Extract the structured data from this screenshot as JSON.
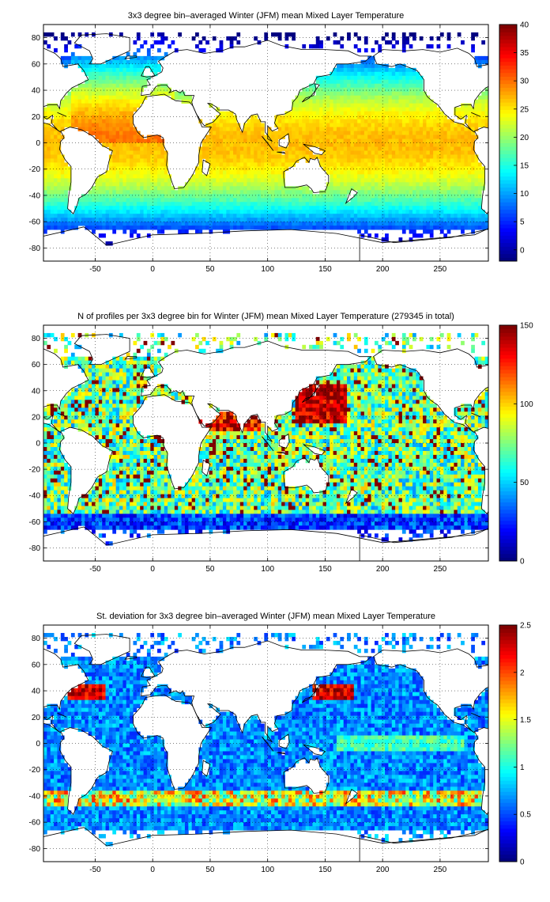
{
  "panels": [
    {
      "id": "temperature",
      "title": "3x3 degree bin–averaged Winter (JFM) mean Mixed Layer Temperature",
      "x_ticks": [
        "-50",
        "0",
        "50",
        "100",
        "150",
        "200",
        "250"
      ],
      "y_ticks": [
        "80",
        "60",
        "40",
        "20",
        "0",
        "-20",
        "-40",
        "-60",
        "-80"
      ],
      "colorbar_ticks": [
        "40",
        "35",
        "30",
        "25",
        "20",
        "15",
        "10",
        "5",
        "0"
      ],
      "colorbar_range": [
        -2,
        40
      ],
      "field": "temperature"
    },
    {
      "id": "profile-count",
      "title": "N of profiles per 3x3 degree bin for Winter (JFM) mean Mixed Layer Temperature  (279345 in total)",
      "x_ticks": [
        "-50",
        "0",
        "50",
        "100",
        "150",
        "200",
        "250"
      ],
      "y_ticks": [
        "80",
        "60",
        "40",
        "20",
        "0",
        "-20",
        "-40",
        "-60",
        "-80"
      ],
      "colorbar_ticks": [
        "150",
        "100",
        "50",
        "0"
      ],
      "colorbar_range": [
        0,
        150
      ],
      "field": "count"
    },
    {
      "id": "std-dev",
      "title": "St. deviation for 3x3 degree bin–averaged Winter (JFM) mean Mixed Layer Temperature",
      "x_ticks": [
        "-50",
        "0",
        "50",
        "100",
        "150",
        "200",
        "250"
      ],
      "y_ticks": [
        "80",
        "60",
        "40",
        "20",
        "0",
        "-20",
        "-40",
        "-60",
        "-80"
      ],
      "colorbar_ticks": [
        "2.5",
        "2",
        "1.5",
        "1",
        "0.5",
        "0"
      ],
      "colorbar_range": [
        0,
        2.5
      ],
      "field": "std"
    }
  ],
  "map_extent": {
    "lon": [
      -95,
      292
    ],
    "lat": [
      -90,
      90
    ]
  },
  "colormap": "jet",
  "gridlines": "dotted"
}
